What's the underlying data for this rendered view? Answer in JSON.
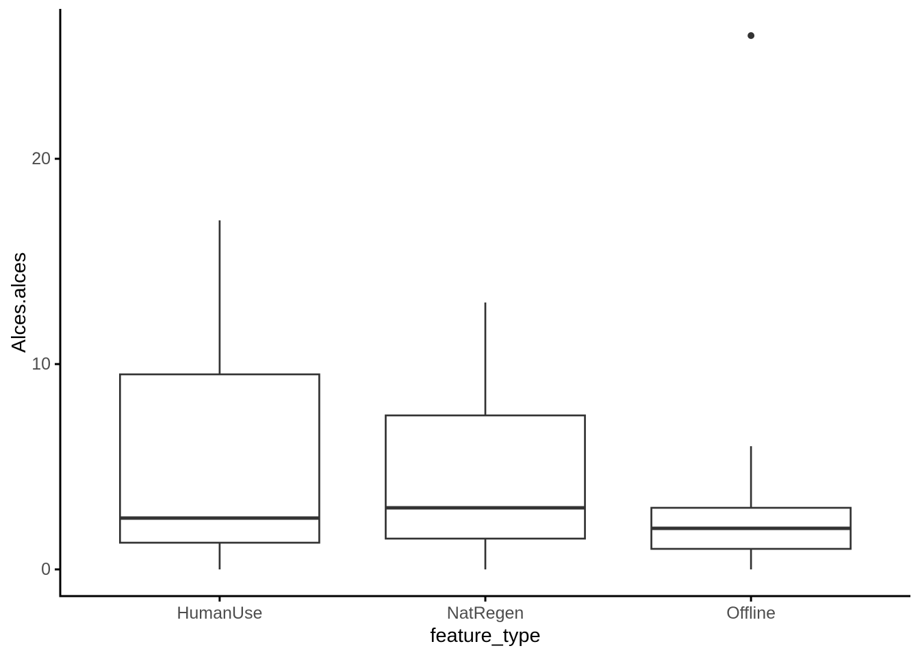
{
  "chart_data": {
    "type": "boxplot",
    "title": "",
    "xlabel": "feature_type",
    "ylabel": "Alces.alces",
    "categories": [
      "HumanUse",
      "NatRegen",
      "Offline"
    ],
    "y_ticks": [
      0,
      10,
      20
    ],
    "ylim": [
      -1.3,
      27.3
    ],
    "grid": false,
    "legend_position": "none",
    "series": [
      {
        "category": "HumanUse",
        "whisker_low": 0,
        "q1": 1.3,
        "median": 2.5,
        "q3": 9.5,
        "whisker_high": 17,
        "outliers": []
      },
      {
        "category": "NatRegen",
        "whisker_low": 0,
        "q1": 1.5,
        "median": 3,
        "q3": 7.5,
        "whisker_high": 13,
        "outliers": []
      },
      {
        "category": "Offline",
        "whisker_low": 0,
        "q1": 1,
        "median": 2,
        "q3": 3,
        "whisker_high": 6,
        "outliers": [
          26
        ]
      }
    ],
    "colors": {
      "background": "#ffffff",
      "axis_line": "#000000",
      "tick_label": "#4d4d4d",
      "axis_title": "#000000",
      "box_border": "#333333",
      "box_fill": "#ffffff",
      "median": "#333333",
      "outlier": "#333333"
    }
  }
}
